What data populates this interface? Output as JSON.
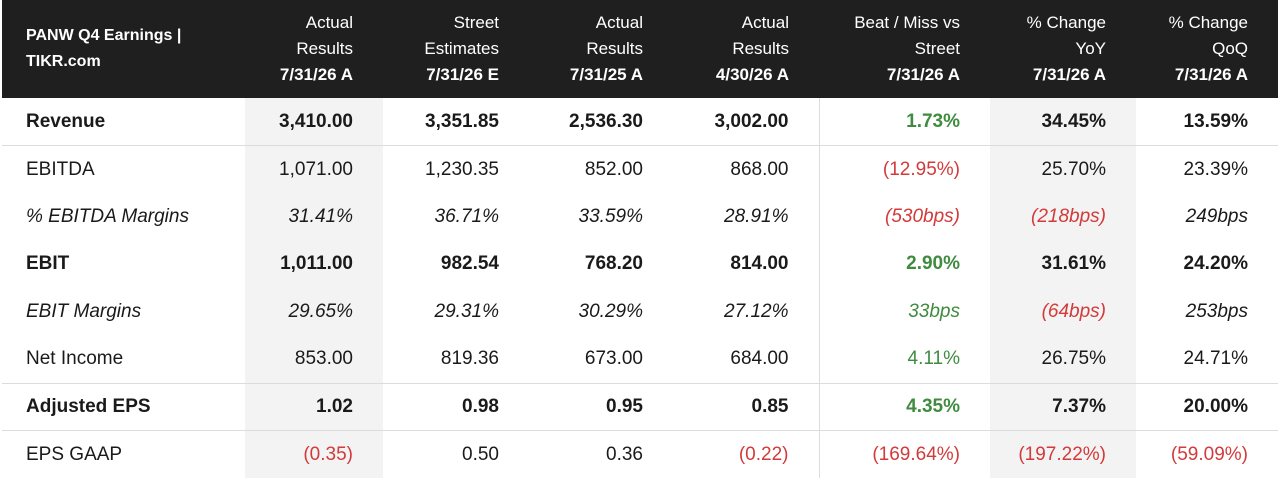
{
  "header": {
    "title_line1": "PANW Q4 Earnings |",
    "title_line2": "TIKR.com",
    "columns": [
      {
        "l1": "Actual",
        "l2": "Results",
        "date": "7/31/26 A"
      },
      {
        "l1": "Street",
        "l2": "Estimates",
        "date": "7/31/26 E"
      },
      {
        "l1": "Actual",
        "l2": "Results",
        "date": "7/31/25 A"
      },
      {
        "l1": "Actual",
        "l2": "Results",
        "date": "4/30/26 A"
      },
      {
        "l1": "Beat / Miss vs",
        "l2": "Street",
        "date": "7/31/26 A"
      },
      {
        "l1": "% Change",
        "l2": "YoY",
        "date": "7/31/26 A"
      },
      {
        "l1": "% Change",
        "l2": "QoQ",
        "date": "7/31/26 A"
      }
    ]
  },
  "rows": [
    {
      "label": "Revenue",
      "cells": [
        "3,410.00",
        "3,351.85",
        "2,536.30",
        "3,002.00",
        "1.73%",
        "34.45%",
        "13.59%"
      ]
    },
    {
      "label": "EBITDA",
      "cells": [
        "1,071.00",
        "1,230.35",
        "852.00",
        "868.00",
        "(12.95%)",
        "25.70%",
        "23.39%"
      ]
    },
    {
      "label": "% EBITDA Margins",
      "cells": [
        "31.41%",
        "36.71%",
        "33.59%",
        "28.91%",
        "(530bps)",
        "(218bps)",
        "249bps"
      ]
    },
    {
      "label": "EBIT",
      "cells": [
        "1,011.00",
        "982.54",
        "768.20",
        "814.00",
        "2.90%",
        "31.61%",
        "24.20%"
      ]
    },
    {
      "label": "EBIT Margins",
      "cells": [
        "29.65%",
        "29.31%",
        "30.29%",
        "27.12%",
        "33bps",
        "(64bps)",
        "253bps"
      ]
    },
    {
      "label": "Net Income",
      "cells": [
        "853.00",
        "819.36",
        "673.00",
        "684.00",
        "4.11%",
        "26.75%",
        "24.71%"
      ]
    },
    {
      "label": "Adjusted EPS",
      "cells": [
        "1.02",
        "0.98",
        "0.95",
        "0.85",
        "4.35%",
        "7.37%",
        "20.00%"
      ]
    },
    {
      "label": "EPS GAAP",
      "cells": [
        "(0.35)",
        "0.50",
        "0.36",
        "(0.22)",
        "(169.64%)",
        "(197.22%)",
        "(59.09%)"
      ]
    }
  ],
  "colors": {
    "positive": "#3f8b3f",
    "negative": "#d33a3a",
    "header_bg": "#1f1f1f",
    "shade": "#f3f3f3"
  }
}
